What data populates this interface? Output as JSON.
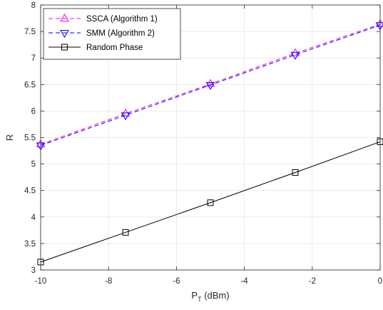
{
  "chart_data": {
    "type": "line",
    "xlabel_main": "P",
    "xlabel_sub": "T",
    "xlabel_unit": " (dBm)",
    "ylabel": "R",
    "xlim": [
      -10,
      0
    ],
    "ylim": [
      3,
      8
    ],
    "xticks": [
      -10,
      -8,
      -6,
      -4,
      -2,
      0
    ],
    "yticks": [
      3,
      3.5,
      4,
      4.5,
      5,
      5.5,
      6,
      6.5,
      7,
      7.5,
      8
    ],
    "grid": true,
    "legend_position": "top-left",
    "x": [
      -10,
      -7.5,
      -5,
      -2.5,
      0
    ],
    "series": [
      {
        "name": "SSCA (Algorithm 1)",
        "values": [
          5.37,
          5.95,
          6.51,
          7.09,
          7.64
        ],
        "color": "#ff00ff",
        "dash": "dashed",
        "marker": "triangle-up"
      },
      {
        "name": "SMM (Algorithm 2)",
        "values": [
          5.35,
          5.92,
          6.49,
          7.06,
          7.62
        ],
        "color": "#0000ff",
        "dash": "dashed",
        "marker": "triangle-down"
      },
      {
        "name": "Random Phase",
        "values": [
          3.15,
          3.71,
          4.27,
          4.84,
          5.42
        ],
        "color": "#000000",
        "dash": "solid",
        "marker": "square"
      }
    ]
  }
}
